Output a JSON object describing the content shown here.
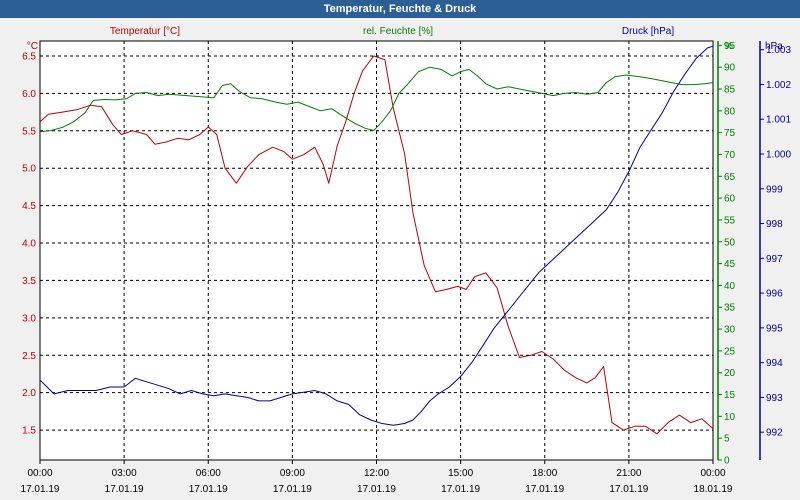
{
  "window": {
    "title": "Temperatur, Feuchte & Druck"
  },
  "chart_data": {
    "type": "line",
    "title": "Temperatur, Feuchte & Druck",
    "x_range": [
      "00:00 17.01.19",
      "00:00 18.01.19"
    ],
    "x_ticks": [
      {
        "hour": 0,
        "time": "00:00",
        "date": "17.01.19"
      },
      {
        "hour": 3,
        "time": "03:00",
        "date": "17.01.19"
      },
      {
        "hour": 6,
        "time": "06:00",
        "date": "17.01.19"
      },
      {
        "hour": 9,
        "time": "09:00",
        "date": "17.01.19"
      },
      {
        "hour": 12,
        "time": "12:00",
        "date": "17.01.19"
      },
      {
        "hour": 15,
        "time": "15:00",
        "date": "17.01.19"
      },
      {
        "hour": 18,
        "time": "18:00",
        "date": "17.01.19"
      },
      {
        "hour": 21,
        "time": "21:00",
        "date": "17.01.19"
      },
      {
        "hour": 24,
        "time": "00:00",
        "date": "18.01.19"
      }
    ],
    "grid": true,
    "axes": {
      "temperature": {
        "unit_label": "°C",
        "range": [
          1.1,
          6.7
        ],
        "ticks": [
          "1.5",
          "2.0",
          "2.5",
          "3.0",
          "3.5",
          "4.0",
          "4.5",
          "5.0",
          "5.5",
          "6.0",
          "6.5"
        ],
        "color": "#c00000"
      },
      "humidity": {
        "unit_label": "%",
        "range": [
          0,
          96
        ],
        "ticks": [
          "0",
          "5",
          "10",
          "15",
          "20",
          "25",
          "30",
          "35",
          "40",
          "45",
          "50",
          "55",
          "60",
          "65",
          "70",
          "75",
          "80",
          "85",
          "90",
          "95"
        ],
        "color": "#008000"
      },
      "pressure": {
        "unit_label": "hPa",
        "range": [
          991.2,
          1003.25
        ],
        "ticks": [
          "992",
          "993",
          "994",
          "995",
          "996",
          "997",
          "998",
          "999",
          "1.000",
          "1.001",
          "1.002",
          "1.003"
        ],
        "color": "#0000a0"
      }
    },
    "series": [
      {
        "name": "Temperatur [°C]",
        "axis": "temperature",
        "color": "#c00000",
        "points": [
          [
            0,
            5.62
          ],
          [
            0.3,
            5.72
          ],
          [
            0.8,
            5.75
          ],
          [
            1.3,
            5.78
          ],
          [
            1.8,
            5.84
          ],
          [
            2.2,
            5.82
          ],
          [
            2.6,
            5.58
          ],
          [
            2.9,
            5.45
          ],
          [
            3.3,
            5.5
          ],
          [
            3.8,
            5.45
          ],
          [
            4.1,
            5.32
          ],
          [
            4.5,
            5.35
          ],
          [
            4.9,
            5.4
          ],
          [
            5.3,
            5.38
          ],
          [
            5.7,
            5.45
          ],
          [
            6.0,
            5.55
          ],
          [
            6.3,
            5.45
          ],
          [
            6.6,
            5.0
          ],
          [
            7.0,
            4.8
          ],
          [
            7.4,
            5.02
          ],
          [
            7.8,
            5.18
          ],
          [
            8.3,
            5.28
          ],
          [
            8.7,
            5.22
          ],
          [
            9.0,
            5.12
          ],
          [
            9.4,
            5.18
          ],
          [
            9.8,
            5.28
          ],
          [
            10.1,
            5.05
          ],
          [
            10.3,
            4.8
          ],
          [
            10.6,
            5.3
          ],
          [
            10.9,
            5.62
          ],
          [
            11.2,
            6.0
          ],
          [
            11.5,
            6.3
          ],
          [
            11.9,
            6.5
          ],
          [
            12.3,
            6.45
          ],
          [
            12.6,
            5.8
          ],
          [
            13.0,
            5.2
          ],
          [
            13.3,
            4.4
          ],
          [
            13.7,
            3.7
          ],
          [
            14.1,
            3.35
          ],
          [
            14.5,
            3.38
          ],
          [
            14.9,
            3.42
          ],
          [
            15.2,
            3.38
          ],
          [
            15.5,
            3.55
          ],
          [
            15.9,
            3.6
          ],
          [
            16.3,
            3.4
          ],
          [
            16.7,
            2.88
          ],
          [
            17.1,
            2.47
          ],
          [
            17.5,
            2.5
          ],
          [
            17.9,
            2.55
          ],
          [
            18.3,
            2.45
          ],
          [
            18.7,
            2.3
          ],
          [
            19.1,
            2.2
          ],
          [
            19.5,
            2.13
          ],
          [
            19.8,
            2.2
          ],
          [
            20.1,
            2.35
          ],
          [
            20.4,
            1.6
          ],
          [
            20.8,
            1.5
          ],
          [
            21.2,
            1.55
          ],
          [
            21.6,
            1.55
          ],
          [
            22.0,
            1.45
          ],
          [
            22.4,
            1.6
          ],
          [
            22.8,
            1.7
          ],
          [
            23.2,
            1.6
          ],
          [
            23.6,
            1.65
          ],
          [
            24.0,
            1.52
          ]
        ]
      },
      {
        "name": "rel. Feuchte [%]",
        "axis": "humidity",
        "color": "#008000",
        "points": [
          [
            0,
            75.2
          ],
          [
            0.4,
            75.5
          ],
          [
            0.8,
            76.2
          ],
          [
            1.2,
            77.5
          ],
          [
            1.6,
            79.5
          ],
          [
            1.9,
            82.4
          ],
          [
            2.3,
            82.6
          ],
          [
            2.7,
            82.5
          ],
          [
            3.1,
            82.8
          ],
          [
            3.4,
            84.0
          ],
          [
            3.8,
            84.2
          ],
          [
            4.2,
            83.5
          ],
          [
            4.6,
            83.8
          ],
          [
            5.0,
            83.6
          ],
          [
            5.4,
            83.4
          ],
          [
            5.8,
            83.2
          ],
          [
            6.2,
            83.0
          ],
          [
            6.5,
            85.8
          ],
          [
            6.8,
            86.2
          ],
          [
            7.1,
            84.5
          ],
          [
            7.5,
            83.0
          ],
          [
            7.9,
            82.8
          ],
          [
            8.4,
            82.0
          ],
          [
            8.8,
            81.5
          ],
          [
            9.2,
            82.0
          ],
          [
            9.6,
            81.0
          ],
          [
            10.0,
            80.0
          ],
          [
            10.4,
            80.5
          ],
          [
            10.8,
            78.8
          ],
          [
            11.2,
            77.2
          ],
          [
            11.6,
            76.0
          ],
          [
            11.9,
            75.5
          ],
          [
            12.2,
            77.5
          ],
          [
            12.5,
            80.0
          ],
          [
            12.8,
            84.0
          ],
          [
            13.1,
            86.0
          ],
          [
            13.5,
            89.0
          ],
          [
            13.9,
            90.0
          ],
          [
            14.3,
            89.5
          ],
          [
            14.7,
            88.0
          ],
          [
            15.0,
            89.0
          ],
          [
            15.3,
            89.5
          ],
          [
            15.6,
            88.0
          ],
          [
            15.9,
            86.2
          ],
          [
            16.3,
            85.0
          ],
          [
            16.7,
            85.5
          ],
          [
            17.1,
            85.0
          ],
          [
            17.5,
            84.5
          ],
          [
            17.9,
            84.0
          ],
          [
            18.3,
            83.5
          ],
          [
            18.7,
            84.0
          ],
          [
            19.1,
            84.2
          ],
          [
            19.5,
            83.8
          ],
          [
            19.9,
            84.2
          ],
          [
            20.2,
            86.5
          ],
          [
            20.5,
            87.8
          ],
          [
            20.9,
            88.2
          ],
          [
            21.3,
            87.9
          ],
          [
            21.7,
            87.5
          ],
          [
            22.1,
            87.0
          ],
          [
            22.5,
            86.5
          ],
          [
            22.9,
            86.0
          ],
          [
            23.3,
            86.0
          ],
          [
            23.7,
            86.2
          ],
          [
            24.0,
            86.5
          ]
        ]
      },
      {
        "name": "Druck [hPa]",
        "axis": "pressure",
        "color": "#0000a0",
        "points": [
          [
            0,
            993.5
          ],
          [
            0.5,
            993.1
          ],
          [
            1.0,
            993.2
          ],
          [
            1.5,
            993.2
          ],
          [
            2.0,
            993.2
          ],
          [
            2.5,
            993.3
          ],
          [
            3.0,
            993.3
          ],
          [
            3.4,
            993.55
          ],
          [
            3.8,
            993.45
          ],
          [
            4.2,
            993.35
          ],
          [
            4.6,
            993.25
          ],
          [
            5.0,
            993.1
          ],
          [
            5.4,
            993.2
          ],
          [
            5.8,
            993.1
          ],
          [
            6.2,
            993.05
          ],
          [
            6.6,
            993.1
          ],
          [
            7.0,
            993.05
          ],
          [
            7.4,
            993.0
          ],
          [
            7.8,
            992.9
          ],
          [
            8.2,
            992.9
          ],
          [
            8.6,
            993.0
          ],
          [
            9.0,
            993.1
          ],
          [
            9.4,
            993.15
          ],
          [
            9.8,
            993.2
          ],
          [
            10.2,
            993.1
          ],
          [
            10.6,
            992.9
          ],
          [
            11.0,
            992.8
          ],
          [
            11.4,
            992.5
          ],
          [
            11.8,
            992.35
          ],
          [
            12.2,
            992.25
          ],
          [
            12.6,
            992.2
          ],
          [
            13.0,
            992.25
          ],
          [
            13.3,
            992.35
          ],
          [
            13.6,
            992.6
          ],
          [
            13.9,
            992.9
          ],
          [
            14.2,
            993.1
          ],
          [
            14.6,
            993.3
          ],
          [
            15.0,
            993.6
          ],
          [
            15.4,
            994.0
          ],
          [
            15.8,
            994.5
          ],
          [
            16.2,
            995.0
          ],
          [
            16.6,
            995.4
          ],
          [
            17.0,
            995.8
          ],
          [
            17.4,
            996.2
          ],
          [
            17.8,
            996.6
          ],
          [
            18.2,
            996.9
          ],
          [
            18.6,
            997.2
          ],
          [
            19.0,
            997.5
          ],
          [
            19.4,
            997.8
          ],
          [
            19.8,
            998.1
          ],
          [
            20.2,
            998.4
          ],
          [
            20.6,
            998.9
          ],
          [
            21.0,
            999.5
          ],
          [
            21.4,
            1000.2
          ],
          [
            21.8,
            1000.7
          ],
          [
            22.2,
            1001.2
          ],
          [
            22.6,
            1001.8
          ],
          [
            23.0,
            1002.3
          ],
          [
            23.4,
            1002.75
          ],
          [
            23.8,
            1003.05
          ],
          [
            24.0,
            1003.1
          ]
        ]
      }
    ]
  }
}
